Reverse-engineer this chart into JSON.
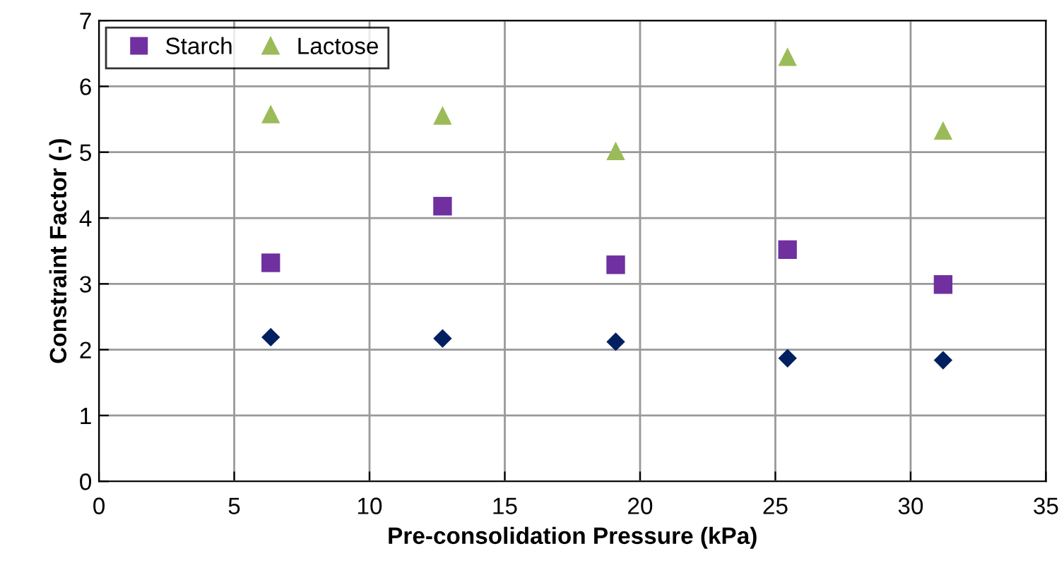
{
  "chart_data": {
    "type": "scatter",
    "xlabel": "Pre-consolidation Pressure (kPa)",
    "ylabel": "Constraint Factor (-)",
    "x": [
      6.35,
      12.7,
      19.1,
      25.45,
      31.2
    ],
    "series": [
      {
        "color": "#002060",
        "marker": "diamond",
        "values": [
          2.19,
          2.17,
          2.12,
          1.87,
          1.84
        ]
      },
      {
        "name": "Starch",
        "color": "#7030a0",
        "marker": "square",
        "values": [
          3.32,
          4.18,
          3.29,
          3.52,
          2.99
        ]
      },
      {
        "name": "Lactose",
        "color": "#9bbb59",
        "marker": "triangle",
        "values": [
          5.58,
          5.56,
          5.02,
          6.45,
          5.33
        ]
      }
    ],
    "xlim": [
      0,
      35
    ],
    "xticks": [
      0,
      5,
      10,
      15,
      20,
      25,
      30,
      35
    ],
    "ylim": [
      0,
      7
    ],
    "yticks": [
      0,
      1,
      2,
      3,
      4,
      5,
      6,
      7
    ],
    "grid": true,
    "legend": "top left"
  }
}
